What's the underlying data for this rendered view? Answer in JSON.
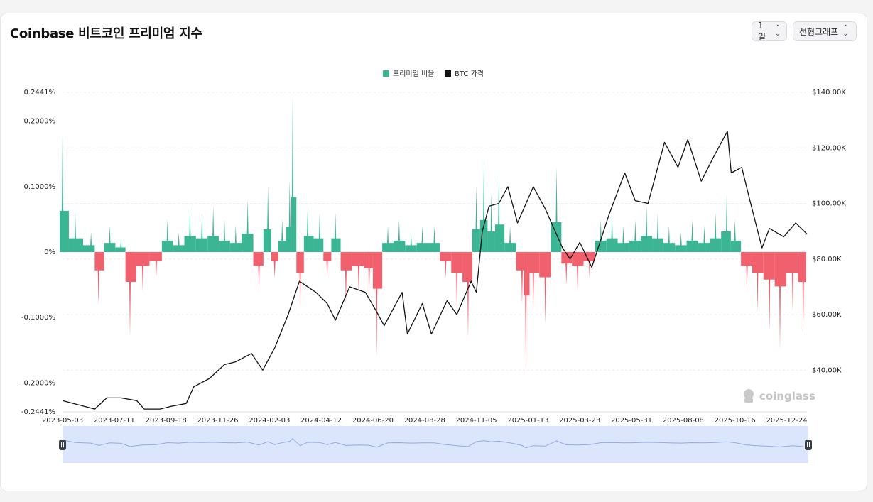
{
  "header": {
    "title": "Coinbase 비트코인 프리미엄 지수",
    "interval_label": "1일",
    "scale_label": "선형그래프"
  },
  "watermark": "coinglass",
  "colors": {
    "positive": "#3bb593",
    "negative": "#f0616d",
    "price_line": "#111111",
    "navigator_fill": "#dbe5fb",
    "navigator_line": "#94a9e4"
  },
  "chart_data": {
    "type": "bar",
    "legend": [
      "프리미엄 비율",
      "BTC 가격"
    ],
    "legend_position": "top-center",
    "grid": true,
    "x_tick_labels": [
      "2023-05-03",
      "2023-07-11",
      "2023-09-18",
      "2023-11-26",
      "2024-02-03",
      "2024-04-12",
      "2024-06-20",
      "2024-08-28",
      "2024-11-05",
      "2025-01-13",
      "2025-03-23",
      "2025-05-31",
      "2025-08-08",
      "2025-10-16",
      "2025-12-24"
    ],
    "y_left_tick_labels": [
      "0.2441%",
      "0.2000%",
      "0.1000%",
      "0%",
      "-0.1000%",
      "-0.2000%",
      "-0.2441%"
    ],
    "y_left_tick_values": [
      0.2441,
      0.2,
      0.1,
      0,
      -0.1,
      -0.2,
      -0.2441
    ],
    "y_left_range": [
      -0.2441,
      0.2441
    ],
    "y_right_tick_labels": [
      "$140.00K",
      "$120.00K",
      "$100.00K",
      "$80.00K",
      "$60.00K",
      "$40.00K"
    ],
    "y_right_tick_values": [
      140,
      120,
      100,
      80,
      60,
      40
    ],
    "y_right_range": [
      25,
      140
    ],
    "x_range": [
      "2023-05-03",
      "2026-01-20"
    ],
    "series": [
      {
        "name": "프리미엄 비율",
        "unit": "%",
        "points": [
          [
            "2023-05-03",
            0.18
          ],
          [
            "2023-05-20",
            0.06
          ],
          [
            "2023-06-10",
            0.03
          ],
          [
            "2023-06-20",
            -0.08
          ],
          [
            "2023-07-05",
            0.04
          ],
          [
            "2023-07-20",
            0.02
          ],
          [
            "2023-08-01",
            -0.13
          ],
          [
            "2023-08-18",
            -0.06
          ],
          [
            "2023-09-05",
            -0.04
          ],
          [
            "2023-09-20",
            0.05
          ],
          [
            "2023-10-05",
            0.03
          ],
          [
            "2023-10-20",
            0.07
          ],
          [
            "2023-11-05",
            0.06
          ],
          [
            "2023-11-20",
            0.07
          ],
          [
            "2023-12-05",
            0.05
          ],
          [
            "2023-12-20",
            0.04
          ],
          [
            "2024-01-05",
            0.08
          ],
          [
            "2024-01-20",
            -0.06
          ],
          [
            "2024-02-01",
            0.1
          ],
          [
            "2024-02-10",
            -0.04
          ],
          [
            "2024-02-20",
            0.05
          ],
          [
            "2024-03-01",
            0.11
          ],
          [
            "2024-03-05",
            0.24
          ],
          [
            "2024-03-15",
            -0.09
          ],
          [
            "2024-03-25",
            0.07
          ],
          [
            "2024-04-10",
            0.06
          ],
          [
            "2024-04-20",
            -0.04
          ],
          [
            "2024-05-01",
            0.06
          ],
          [
            "2024-05-15",
            -0.08
          ],
          [
            "2024-06-01",
            -0.06
          ],
          [
            "2024-06-15",
            -0.07
          ],
          [
            "2024-06-25",
            -0.16
          ],
          [
            "2024-07-10",
            0.04
          ],
          [
            "2024-07-25",
            0.05
          ],
          [
            "2024-08-10",
            0.03
          ],
          [
            "2024-08-25",
            0.04
          ],
          [
            "2024-09-10",
            0.04
          ],
          [
            "2024-09-25",
            -0.04
          ],
          [
            "2024-10-10",
            -0.09
          ],
          [
            "2024-10-25",
            -0.13
          ],
          [
            "2024-11-05",
            0.1
          ],
          [
            "2024-11-15",
            0.14
          ],
          [
            "2024-11-25",
            0.09
          ],
          [
            "2024-12-05",
            0.12
          ],
          [
            "2024-12-20",
            0.04
          ],
          [
            "2025-01-05",
            -0.08
          ],
          [
            "2025-01-10",
            -0.19
          ],
          [
            "2025-01-20",
            -0.09
          ],
          [
            "2025-02-05",
            -0.11
          ],
          [
            "2025-02-20",
            0.13
          ],
          [
            "2025-03-05",
            -0.05
          ],
          [
            "2025-03-20",
            -0.06
          ],
          [
            "2025-04-05",
            -0.04
          ],
          [
            "2025-04-20",
            0.05
          ],
          [
            "2025-05-05",
            0.06
          ],
          [
            "2025-05-20",
            0.04
          ],
          [
            "2025-06-05",
            0.05
          ],
          [
            "2025-06-20",
            0.07
          ],
          [
            "2025-07-05",
            0.06
          ],
          [
            "2025-07-20",
            0.04
          ],
          [
            "2025-08-05",
            0.03
          ],
          [
            "2025-08-20",
            0.05
          ],
          [
            "2025-09-05",
            0.04
          ],
          [
            "2025-09-20",
            0.06
          ],
          [
            "2025-10-05",
            0.09
          ],
          [
            "2025-10-16",
            0.05
          ],
          [
            "2025-11-01",
            -0.06
          ],
          [
            "2025-11-15",
            -0.09
          ],
          [
            "2025-12-01",
            -0.12
          ],
          [
            "2025-12-15",
            -0.15
          ],
          [
            "2026-01-01",
            -0.09
          ],
          [
            "2026-01-15",
            -0.13
          ]
        ]
      },
      {
        "name": "BTC 가격",
        "unit": "K USD",
        "points": [
          [
            "2023-05-03",
            29
          ],
          [
            "2023-06-01",
            27
          ],
          [
            "2023-06-15",
            26
          ],
          [
            "2023-07-01",
            30
          ],
          [
            "2023-07-20",
            30
          ],
          [
            "2023-08-10",
            29
          ],
          [
            "2023-08-20",
            26
          ],
          [
            "2023-09-10",
            26
          ],
          [
            "2023-09-25",
            27
          ],
          [
            "2023-10-15",
            28
          ],
          [
            "2023-10-25",
            34
          ],
          [
            "2023-11-15",
            37
          ],
          [
            "2023-12-05",
            42
          ],
          [
            "2023-12-20",
            43
          ],
          [
            "2024-01-10",
            46
          ],
          [
            "2024-01-25",
            40
          ],
          [
            "2024-02-10",
            48
          ],
          [
            "2024-02-28",
            60
          ],
          [
            "2024-03-14",
            72
          ],
          [
            "2024-04-05",
            68
          ],
          [
            "2024-04-20",
            64
          ],
          [
            "2024-05-01",
            58
          ],
          [
            "2024-05-20",
            70
          ],
          [
            "2024-06-10",
            68
          ],
          [
            "2024-06-25",
            61
          ],
          [
            "2024-07-05",
            56
          ],
          [
            "2024-07-29",
            68
          ],
          [
            "2024-08-05",
            53
          ],
          [
            "2024-08-25",
            64
          ],
          [
            "2024-09-06",
            53
          ],
          [
            "2024-09-27",
            65
          ],
          [
            "2024-10-10",
            60
          ],
          [
            "2024-10-29",
            72
          ],
          [
            "2024-11-05",
            68
          ],
          [
            "2024-11-13",
            90
          ],
          [
            "2024-11-22",
            99
          ],
          [
            "2024-12-05",
            100
          ],
          [
            "2024-12-17",
            106
          ],
          [
            "2024-12-30",
            93
          ],
          [
            "2025-01-20",
            106
          ],
          [
            "2025-02-05",
            98
          ],
          [
            "2025-02-28",
            84
          ],
          [
            "2025-03-10",
            80
          ],
          [
            "2025-03-23",
            86
          ],
          [
            "2025-04-08",
            77
          ],
          [
            "2025-05-01",
            96
          ],
          [
            "2025-05-22",
            111
          ],
          [
            "2025-06-05",
            101
          ],
          [
            "2025-06-22",
            100
          ],
          [
            "2025-07-14",
            122
          ],
          [
            "2025-08-01",
            113
          ],
          [
            "2025-08-14",
            123
          ],
          [
            "2025-09-01",
            108
          ],
          [
            "2025-09-18",
            117
          ],
          [
            "2025-10-06",
            126
          ],
          [
            "2025-10-11",
            111
          ],
          [
            "2025-10-25",
            113
          ],
          [
            "2025-11-05",
            101
          ],
          [
            "2025-11-21",
            84
          ],
          [
            "2025-12-01",
            91
          ],
          [
            "2025-12-20",
            88
          ],
          [
            "2026-01-05",
            93
          ],
          [
            "2026-01-20",
            89
          ]
        ]
      }
    ]
  }
}
